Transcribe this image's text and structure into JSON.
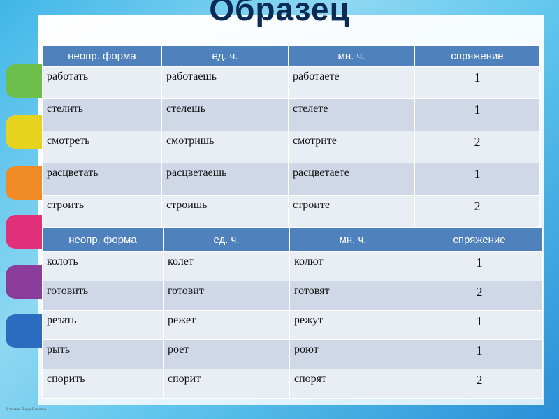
{
  "title": "Образец",
  "tables": [
    {
      "header": [
        "неопр. форма",
        "ед. ч.",
        "мн. ч.",
        "спряжение"
      ],
      "rows": [
        [
          "работать",
          "работаешь",
          "работаете",
          1
        ],
        [
          "стелить",
          "стелешь",
          "стелете",
          1
        ],
        [
          "смотреть",
          "смотришь",
          "смотрите",
          2
        ],
        [
          "расцветать",
          "расцветаешь",
          "расцветаете",
          1
        ],
        [
          "строить",
          "строишь",
          "строите",
          2
        ]
      ]
    },
    {
      "header": [
        "неопр. форма",
        "ед. ч.",
        "мн. ч.",
        "спряжение"
      ],
      "rows": [
        [
          "колоть",
          "колет",
          "колют",
          1
        ],
        [
          "готовить",
          "готовит",
          "готовят",
          2
        ],
        [
          "резать",
          "режет",
          "режут",
          1
        ],
        [
          "рыть",
          "роет",
          "роют",
          1
        ],
        [
          "спорить",
          "спорит",
          "спорят",
          2
        ]
      ]
    }
  ],
  "footer": "© Фокина Лидия Петровна"
}
